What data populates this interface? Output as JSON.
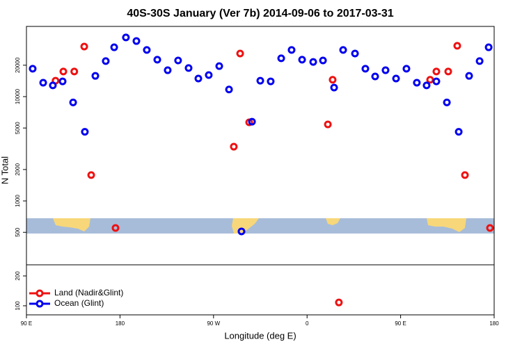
{
  "chart_data": [
    {
      "type": "scatter",
      "title": "40S-30S January (Ver 7b)   2014-09-06 to 2017-03-31",
      "y_label": "N Total",
      "log_y": true,
      "xlim": [
        90,
        540
      ],
      "ylim": [
        244,
        47100
      ],
      "yticks": [
        500,
        1000,
        2000,
        5000,
        10000,
        20000
      ],
      "series": [
        {
          "color": "#ee1111",
          "x": [
            118,
            125.5,
            136,
            145.6,
            152.3,
            175.7,
            289.5,
            295.6,
            304.3,
            380,
            384.6,
            478.4,
            484.4,
            495.8,
            504.5,
            511.9,
            536
          ],
          "values": [
            14200,
            17400,
            17400,
            30200,
            1770,
            550,
            3310,
            25900,
            5670,
            5410,
            14500,
            14500,
            17400,
            17400,
            30700,
            1770,
            550
          ]
        },
        {
          "color": "#0000ee",
          "x": [
            96,
            106.1,
            115.4,
            124.8,
            134.9,
            146.2,
            156.3,
            166.3,
            174.4,
            185.7,
            195.8,
            205.8,
            215.9,
            225.9,
            235.9,
            246,
            255.4,
            265.4,
            275.5,
            284.9,
            296.9,
            307,
            315,
            325,
            335.1,
            345.1,
            355.2,
            365.9,
            375.3,
            386,
            394.7,
            406.1,
            416.1,
            425.5,
            435.5,
            445.6,
            455.6,
            465.6,
            475,
            484.4,
            494.5,
            505.9,
            515.9,
            526,
            534.7
          ],
          "values": [
            18500,
            13600,
            12800,
            14000,
            8800,
            4600,
            15800,
            21900,
            29700,
            36900,
            34100,
            28000,
            22600,
            17900,
            22200,
            18800,
            14900,
            16100,
            19600,
            11700,
            510,
            5750,
            14200,
            14000,
            23300,
            28000,
            22600,
            21500,
            22200,
            12200,
            28000,
            25900,
            18500,
            15600,
            17900,
            14900,
            18500,
            13600,
            12800,
            14000,
            8800,
            4600,
            15800,
            21900,
            29700
          ]
        }
      ]
    },
    {
      "type": "scatter",
      "x_label": "Longitude (deg E)",
      "log_y": true,
      "xlim": [
        90,
        540
      ],
      "ylim": [
        81,
        259
      ],
      "yticks": [
        100,
        200
      ],
      "xticks": [
        {
          "value": 90,
          "label": "90 E"
        },
        {
          "value": 180,
          "label": "180"
        },
        {
          "value": 270,
          "label": "90 W"
        },
        {
          "value": 360,
          "label": "0"
        },
        {
          "value": 450,
          "label": "90 E"
        },
        {
          "value": 540,
          "label": "180"
        }
      ],
      "legend": "bottom-left",
      "series": [
        {
          "name": "Land (Nadir&Glint)",
          "color": "#ee1111",
          "x": [
            390.6
          ],
          "values": [
            108
          ]
        },
        {
          "name": "Ocean (Glint)",
          "color": "#0000ee",
          "x": [],
          "values": []
        }
      ]
    }
  ]
}
